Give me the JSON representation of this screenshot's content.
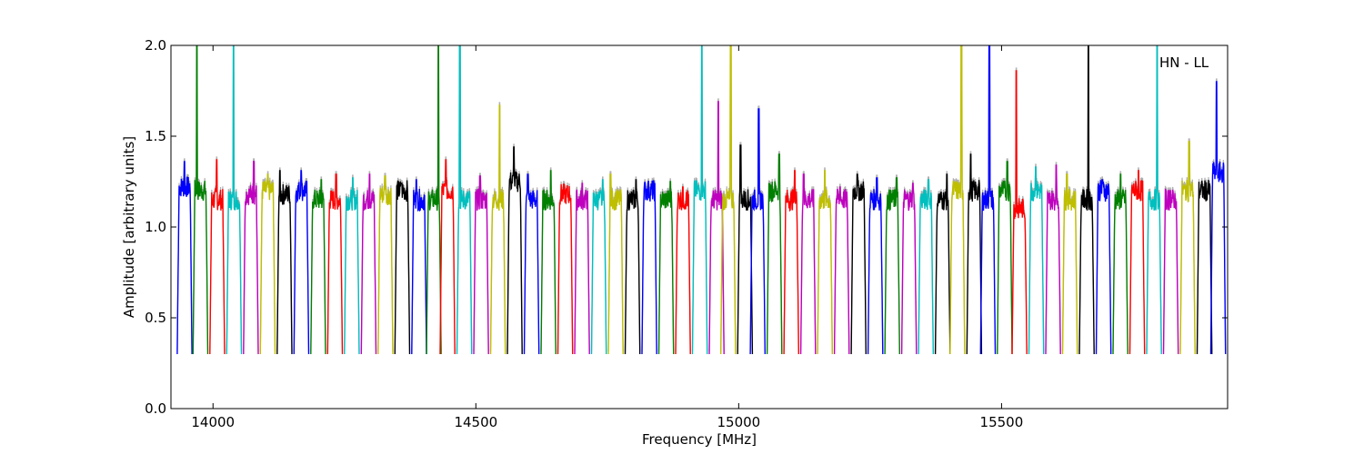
{
  "chart_data": {
    "type": "line",
    "title": "",
    "annotation": "HN - LL",
    "xlabel": "Frequency [MHz]",
    "ylabel": "Amplitude [arbitrary units]",
    "xlim": [
      13920,
      15930
    ],
    "ylim": [
      0.0,
      2.0
    ],
    "x_ticks": [
      14000,
      14500,
      15000,
      15500
    ],
    "x_tick_labels": [
      "14000",
      "14500",
      "15000",
      "15500"
    ],
    "y_ticks": [
      0.0,
      0.5,
      1.0,
      1.5,
      2.0
    ],
    "y_tick_labels": [
      "0.0",
      "0.5",
      "1.0",
      "1.5",
      "2.0"
    ],
    "grid": false,
    "legend": "none",
    "palette": [
      "#0000ff",
      "#008000",
      "#ff0000",
      "#00bfbf",
      "#bf00bf",
      "#bfbf00",
      "#000000"
    ],
    "background_trace_color": "#b0b0b0",
    "channel_spacing_mhz": 32,
    "channel_width_mhz": 28,
    "series": [
      {
        "center": 13946,
        "color": "#0000ff",
        "base": 1.22,
        "spike": 1.36
      },
      {
        "center": 13976,
        "color": "#008000",
        "base": 1.2,
        "spike": 2.0
      },
      {
        "center": 14008,
        "color": "#ff0000",
        "base": 1.15,
        "spike": 1.37
      },
      {
        "center": 14040,
        "color": "#00bfbf",
        "base": 1.15,
        "spike": 2.0
      },
      {
        "center": 14072,
        "color": "#bf00bf",
        "base": 1.18,
        "spike": 1.36
      },
      {
        "center": 14104,
        "color": "#bfbf00",
        "base": 1.2,
        "spike": 1.29
      },
      {
        "center": 14136,
        "color": "#000000",
        "base": 1.18,
        "spike": 1.31
      },
      {
        "center": 14168,
        "color": "#0000ff",
        "base": 1.2,
        "spike": 1.31
      },
      {
        "center": 14200,
        "color": "#008000",
        "base": 1.15,
        "spike": 1.26
      },
      {
        "center": 14232,
        "color": "#ff0000",
        "base": 1.15,
        "spike": 1.29
      },
      {
        "center": 14264,
        "color": "#00bfbf",
        "base": 1.15,
        "spike": 1.27
      },
      {
        "center": 14296,
        "color": "#bf00bf",
        "base": 1.15,
        "spike": 1.29
      },
      {
        "center": 14328,
        "color": "#bfbf00",
        "base": 1.18,
        "spike": 1.28
      },
      {
        "center": 14360,
        "color": "#000000",
        "base": 1.2,
        "spike": 1.24
      },
      {
        "center": 14392,
        "color": "#0000ff",
        "base": 1.15,
        "spike": 1.26
      },
      {
        "center": 14420,
        "color": "#008000",
        "base": 1.15,
        "spike": 2.0
      },
      {
        "center": 14446,
        "color": "#ff0000",
        "base": 1.2,
        "spike": 1.37
      },
      {
        "center": 14478,
        "color": "#00bfbf",
        "base": 1.15,
        "spike": 2.0
      },
      {
        "center": 14510,
        "color": "#bf00bf",
        "base": 1.15,
        "spike": 1.28
      },
      {
        "center": 14542,
        "color": "#bfbf00",
        "base": 1.15,
        "spike": 1.67
      },
      {
        "center": 14574,
        "color": "#000000",
        "base": 1.25,
        "spike": 1.44
      },
      {
        "center": 14606,
        "color": "#0000ff",
        "base": 1.15,
        "spike": 1.29
      },
      {
        "center": 14638,
        "color": "#008000",
        "base": 1.15,
        "spike": 1.31
      },
      {
        "center": 14670,
        "color": "#ff0000",
        "base": 1.18,
        "spike": 1.21
      },
      {
        "center": 14702,
        "color": "#bf00bf",
        "base": 1.15,
        "spike": 1.24
      },
      {
        "center": 14734,
        "color": "#00bfbf",
        "base": 1.15,
        "spike": 1.26
      },
      {
        "center": 14766,
        "color": "#bfbf00",
        "base": 1.15,
        "spike": 1.29
      },
      {
        "center": 14798,
        "color": "#000000",
        "base": 1.15,
        "spike": 1.26
      },
      {
        "center": 14830,
        "color": "#0000ff",
        "base": 1.2,
        "spike": 1.25
      },
      {
        "center": 14862,
        "color": "#008000",
        "base": 1.15,
        "spike": 1.25
      },
      {
        "center": 14894,
        "color": "#ff0000",
        "base": 1.15,
        "spike": 1.22
      },
      {
        "center": 14926,
        "color": "#00bfbf",
        "base": 1.2,
        "spike": 2.0
      },
      {
        "center": 14958,
        "color": "#bf00bf",
        "base": 1.15,
        "spike": 1.69
      },
      {
        "center": 14980,
        "color": "#bfbf00",
        "base": 1.15,
        "spike": 2.0
      },
      {
        "center": 15012,
        "color": "#000000",
        "base": 1.15,
        "spike": 1.45
      },
      {
        "center": 15036,
        "color": "#0000ff",
        "base": 1.15,
        "spike": 1.65
      },
      {
        "center": 15068,
        "color": "#008000",
        "base": 1.2,
        "spike": 1.4
      },
      {
        "center": 15100,
        "color": "#ff0000",
        "base": 1.15,
        "spike": 1.31
      },
      {
        "center": 15132,
        "color": "#bf00bf",
        "base": 1.15,
        "spike": 1.29
      },
      {
        "center": 15164,
        "color": "#bfbf00",
        "base": 1.15,
        "spike": 1.31
      },
      {
        "center": 15196,
        "color": "#bf00bf",
        "base": 1.15,
        "spike": 1.22
      },
      {
        "center": 15228,
        "color": "#000000",
        "base": 1.2,
        "spike": 1.29
      },
      {
        "center": 15260,
        "color": "#0000ff",
        "base": 1.15,
        "spike": 1.27
      },
      {
        "center": 15292,
        "color": "#008000",
        "base": 1.15,
        "spike": 1.27
      },
      {
        "center": 15324,
        "color": "#bf00bf",
        "base": 1.15,
        "spike": 1.24
      },
      {
        "center": 15356,
        "color": "#00bfbf",
        "base": 1.15,
        "spike": 1.26
      },
      {
        "center": 15388,
        "color": "#000000",
        "base": 1.15,
        "spike": 1.29
      },
      {
        "center": 15416,
        "color": "#bfbf00",
        "base": 1.2,
        "spike": 2.0
      },
      {
        "center": 15448,
        "color": "#000000",
        "base": 1.2,
        "spike": 1.4
      },
      {
        "center": 15474,
        "color": "#0000ff",
        "base": 1.15,
        "spike": 2.0
      },
      {
        "center": 15506,
        "color": "#008000",
        "base": 1.2,
        "spike": 1.36
      },
      {
        "center": 15534,
        "color": "#ff0000",
        "base": 1.1,
        "spike": 1.86
      },
      {
        "center": 15566,
        "color": "#00bfbf",
        "base": 1.2,
        "spike": 1.33
      },
      {
        "center": 15598,
        "color": "#bf00bf",
        "base": 1.15,
        "spike": 1.34
      },
      {
        "center": 15630,
        "color": "#bfbf00",
        "base": 1.15,
        "spike": 1.29
      },
      {
        "center": 15662,
        "color": "#000000",
        "base": 1.15,
        "spike": 2.0
      },
      {
        "center": 15694,
        "color": "#0000ff",
        "base": 1.2,
        "spike": 1.26
      },
      {
        "center": 15726,
        "color": "#008000",
        "base": 1.15,
        "spike": 1.29
      },
      {
        "center": 15758,
        "color": "#ff0000",
        "base": 1.2,
        "spike": 1.31
      },
      {
        "center": 15790,
        "color": "#00bfbf",
        "base": 1.15,
        "spike": 2.0
      },
      {
        "center": 15822,
        "color": "#bf00bf",
        "base": 1.15,
        "spike": 1.2
      },
      {
        "center": 15854,
        "color": "#bfbf00",
        "base": 1.2,
        "spike": 1.47
      },
      {
        "center": 15886,
        "color": "#000000",
        "base": 1.2,
        "spike": 1.22
      },
      {
        "center": 15912,
        "color": "#0000ff",
        "base": 1.3,
        "spike": 1.8
      }
    ]
  }
}
